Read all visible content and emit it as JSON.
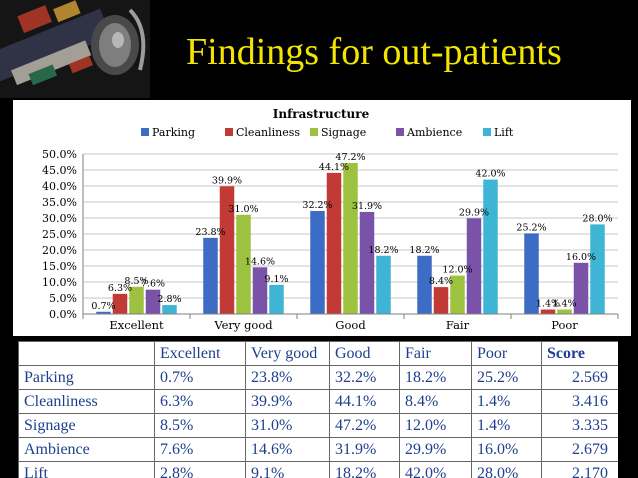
{
  "slide": {
    "title": "Findings for out-patients"
  },
  "chart_data": {
    "type": "bar",
    "title": "Infrastructure",
    "categories": [
      "Excellent",
      "Very good",
      "Good",
      "Fair",
      "Poor"
    ],
    "series": [
      {
        "name": "Parking",
        "values": [
          0.7,
          23.8,
          32.2,
          18.2,
          25.2
        ],
        "color": "#3d6cc4"
      },
      {
        "name": "Cleanliness",
        "values": [
          6.3,
          39.9,
          44.1,
          8.4,
          1.4
        ],
        "color": "#c23a35"
      },
      {
        "name": "Signage",
        "values": [
          8.5,
          31.0,
          47.2,
          12.0,
          1.4
        ],
        "color": "#9dc240"
      },
      {
        "name": "Ambience",
        "values": [
          7.6,
          14.6,
          31.9,
          29.9,
          16.0
        ],
        "color": "#7a52a8"
      },
      {
        "name": "Lift",
        "values": [
          2.8,
          9.1,
          18.2,
          42.0,
          28.0
        ],
        "color": "#3fb5d6"
      }
    ],
    "ylim": [
      0,
      50
    ],
    "yticks": [
      "0.0%",
      "5.0%",
      "10.0%",
      "15.0%",
      "20.0%",
      "25.0%",
      "30.0%",
      "35.0%",
      "40.0%",
      "45.0%",
      "50.0%"
    ],
    "value_format": "percent_1dp",
    "legend": "top",
    "grid": true
  },
  "table": {
    "headers": [
      "",
      "Excellent",
      "Very good",
      "Good",
      "Fair",
      "Poor",
      "Score"
    ],
    "rows": [
      [
        "Parking",
        "0.7%",
        "23.8%",
        "32.2%",
        "18.2%",
        "25.2%",
        "2.569"
      ],
      [
        "Cleanliness",
        "6.3%",
        "39.9%",
        "44.1%",
        "8.4%",
        "1.4%",
        "3.416"
      ],
      [
        "Signage",
        "8.5%",
        "31.0%",
        "47.2%",
        "12.0%",
        "1.4%",
        "3.335"
      ],
      [
        "Ambience",
        "7.6%",
        "14.6%",
        "31.9%",
        "29.9%",
        "16.0%",
        "2.679"
      ],
      [
        "Lift",
        "2.8%",
        "9.1%",
        "18.2%",
        "42.0%",
        "28.0%",
        "2.170"
      ]
    ]
  }
}
